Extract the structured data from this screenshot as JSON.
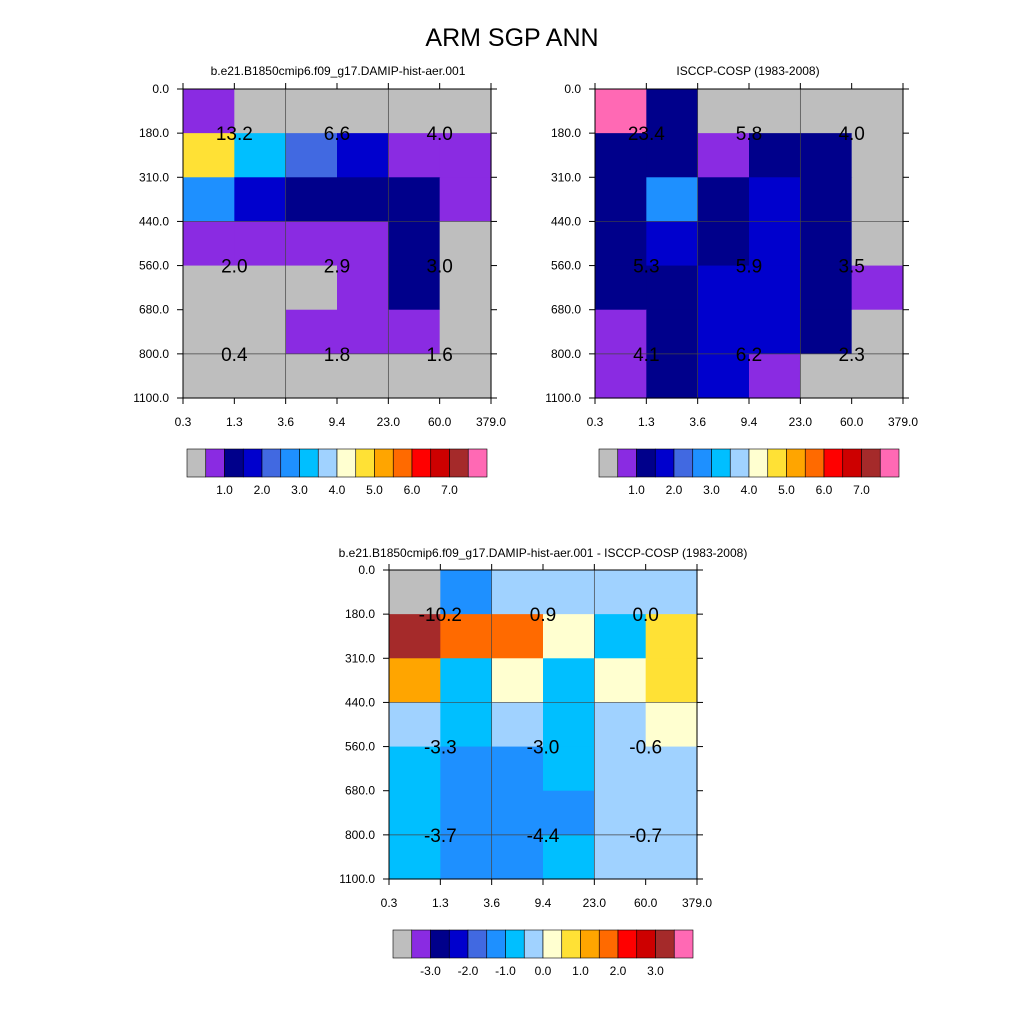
{
  "title": "ARM SGP ANN",
  "x_tick_labels": [
    "0.3",
    "1.3",
    "3.6",
    "9.4",
    "23.0",
    "60.0",
    "379.0"
  ],
  "y_tick_labels": [
    "0.0",
    "180.0",
    "310.0",
    "440.0",
    "560.0",
    "680.0",
    "800.0",
    "1100.0"
  ],
  "colors": {
    "panel_cmap": [
      "#bebebe",
      "#8a2be2",
      "#00008b",
      "#0000cd",
      "#4169e1",
      "#1e90ff",
      "#00bfff",
      "#a0d2ff",
      "#ffffd0",
      "#ffe135",
      "#ffa500",
      "#ff6a00",
      "#ff0000",
      "#cd0000",
      "#a52a2a",
      "#ff69b4"
    ],
    "diff_cmap": [
      "#bebebe",
      "#8a2be2",
      "#00008b",
      "#0000cd",
      "#4169e1",
      "#1e90ff",
      "#00bfff",
      "#a0d2ff",
      "#ffffd0",
      "#ffe135",
      "#ffa500",
      "#ff6a00",
      "#ff0000",
      "#cd0000",
      "#a52a2a",
      "#ff69b4"
    ]
  },
  "chart_data": [
    {
      "type": "heatmap",
      "id": "model",
      "title": "b.e21.B1850cmip6.f09_g17.DAMIP-hist-aer.001",
      "x_bins": [
        "0.3",
        "1.3",
        "3.6",
        "9.4",
        "23.0",
        "60.0",
        "379.0"
      ],
      "y_bins": [
        "0.0",
        "180.0",
        "310.0",
        "440.0",
        "560.0",
        "680.0",
        "800.0",
        "1100.0"
      ],
      "cell_color_index": [
        [
          1,
          0,
          0,
          0,
          0,
          0
        ],
        [
          9,
          6,
          4,
          3,
          1,
          1
        ],
        [
          5,
          3,
          2,
          2,
          2,
          1
        ],
        [
          1,
          1,
          1,
          1,
          2,
          0
        ],
        [
          0,
          0,
          0,
          1,
          2,
          0
        ],
        [
          0,
          0,
          1,
          1,
          1,
          0
        ],
        [
          0,
          0,
          0,
          0,
          0,
          0
        ]
      ],
      "annotations": [
        {
          "text": "13.2",
          "col": 1,
          "row": 1
        },
        {
          "text": "6.6",
          "col": 3,
          "row": 1
        },
        {
          "text": "4.0",
          "col": 5,
          "row": 1
        },
        {
          "text": "2.0",
          "col": 1,
          "row": 4
        },
        {
          "text": "2.9",
          "col": 3,
          "row": 4
        },
        {
          "text": "3.0",
          "col": 5,
          "row": 4
        },
        {
          "text": "0.4",
          "col": 1,
          "row": 6
        },
        {
          "text": "1.8",
          "col": 3,
          "row": 6
        },
        {
          "text": "1.6",
          "col": 5,
          "row": 6
        }
      ],
      "colorbar_labels": [
        "1.0",
        "2.0",
        "3.0",
        "4.0",
        "5.0",
        "6.0",
        "7.0"
      ]
    },
    {
      "type": "heatmap",
      "id": "obs",
      "title": "ISCCP-COSP (1983-2008)",
      "x_bins": [
        "0.3",
        "1.3",
        "3.6",
        "9.4",
        "23.0",
        "60.0",
        "379.0"
      ],
      "y_bins": [
        "0.0",
        "180.0",
        "310.0",
        "440.0",
        "560.0",
        "680.0",
        "800.0",
        "1100.0"
      ],
      "cell_color_index": [
        [
          15,
          2,
          0,
          0,
          0,
          0
        ],
        [
          2,
          2,
          1,
          2,
          2,
          0
        ],
        [
          2,
          5,
          2,
          3,
          2,
          0
        ],
        [
          2,
          3,
          2,
          3,
          2,
          0
        ],
        [
          2,
          2,
          3,
          3,
          2,
          1
        ],
        [
          1,
          2,
          3,
          3,
          2,
          0
        ],
        [
          1,
          2,
          3,
          1,
          0,
          0
        ]
      ],
      "annotations": [
        {
          "text": "23.4",
          "col": 1,
          "row": 1
        },
        {
          "text": "5.8",
          "col": 3,
          "row": 1
        },
        {
          "text": "4.0",
          "col": 5,
          "row": 1
        },
        {
          "text": "5.3",
          "col": 1,
          "row": 4
        },
        {
          "text": "5.9",
          "col": 3,
          "row": 4
        },
        {
          "text": "3.5",
          "col": 5,
          "row": 4
        },
        {
          "text": "4.1",
          "col": 1,
          "row": 6
        },
        {
          "text": "6.2",
          "col": 3,
          "row": 6
        },
        {
          "text": "2.3",
          "col": 5,
          "row": 6
        }
      ],
      "colorbar_labels": [
        "1.0",
        "2.0",
        "3.0",
        "4.0",
        "5.0",
        "6.0",
        "7.0"
      ]
    },
    {
      "type": "heatmap",
      "id": "diff",
      "title": "b.e21.B1850cmip6.f09_g17.DAMIP-hist-aer.001 - ISCCP-COSP (1983-2008)",
      "x_bins": [
        "0.3",
        "1.3",
        "3.6",
        "9.4",
        "23.0",
        "60.0",
        "379.0"
      ],
      "y_bins": [
        "0.0",
        "180.0",
        "310.0",
        "440.0",
        "560.0",
        "680.0",
        "800.0",
        "1100.0"
      ],
      "cell_color_index": [
        [
          0,
          5,
          7,
          7,
          7,
          7
        ],
        [
          14,
          11,
          11,
          8,
          6,
          9
        ],
        [
          10,
          6,
          8,
          6,
          8,
          9
        ],
        [
          7,
          6,
          7,
          6,
          7,
          8
        ],
        [
          6,
          5,
          5,
          6,
          7,
          7
        ],
        [
          6,
          5,
          5,
          5,
          7,
          7
        ],
        [
          6,
          5,
          5,
          6,
          7,
          7
        ]
      ],
      "annotations": [
        {
          "text": "-10.2",
          "col": 1,
          "row": 1
        },
        {
          "text": "0.9",
          "col": 3,
          "row": 1
        },
        {
          "text": "0.0",
          "col": 5,
          "row": 1
        },
        {
          "text": "-3.3",
          "col": 1,
          "row": 4
        },
        {
          "text": "-3.0",
          "col": 3,
          "row": 4
        },
        {
          "text": "-0.6",
          "col": 5,
          "row": 4
        },
        {
          "text": "-3.7",
          "col": 1,
          "row": 6
        },
        {
          "text": "-4.4",
          "col": 3,
          "row": 6
        },
        {
          "text": "-0.7",
          "col": 5,
          "row": 6
        }
      ],
      "colorbar_labels": [
        "-3.0",
        "-2.0",
        "-1.0",
        "0.0",
        "1.0",
        "2.0",
        "3.0"
      ]
    }
  ]
}
